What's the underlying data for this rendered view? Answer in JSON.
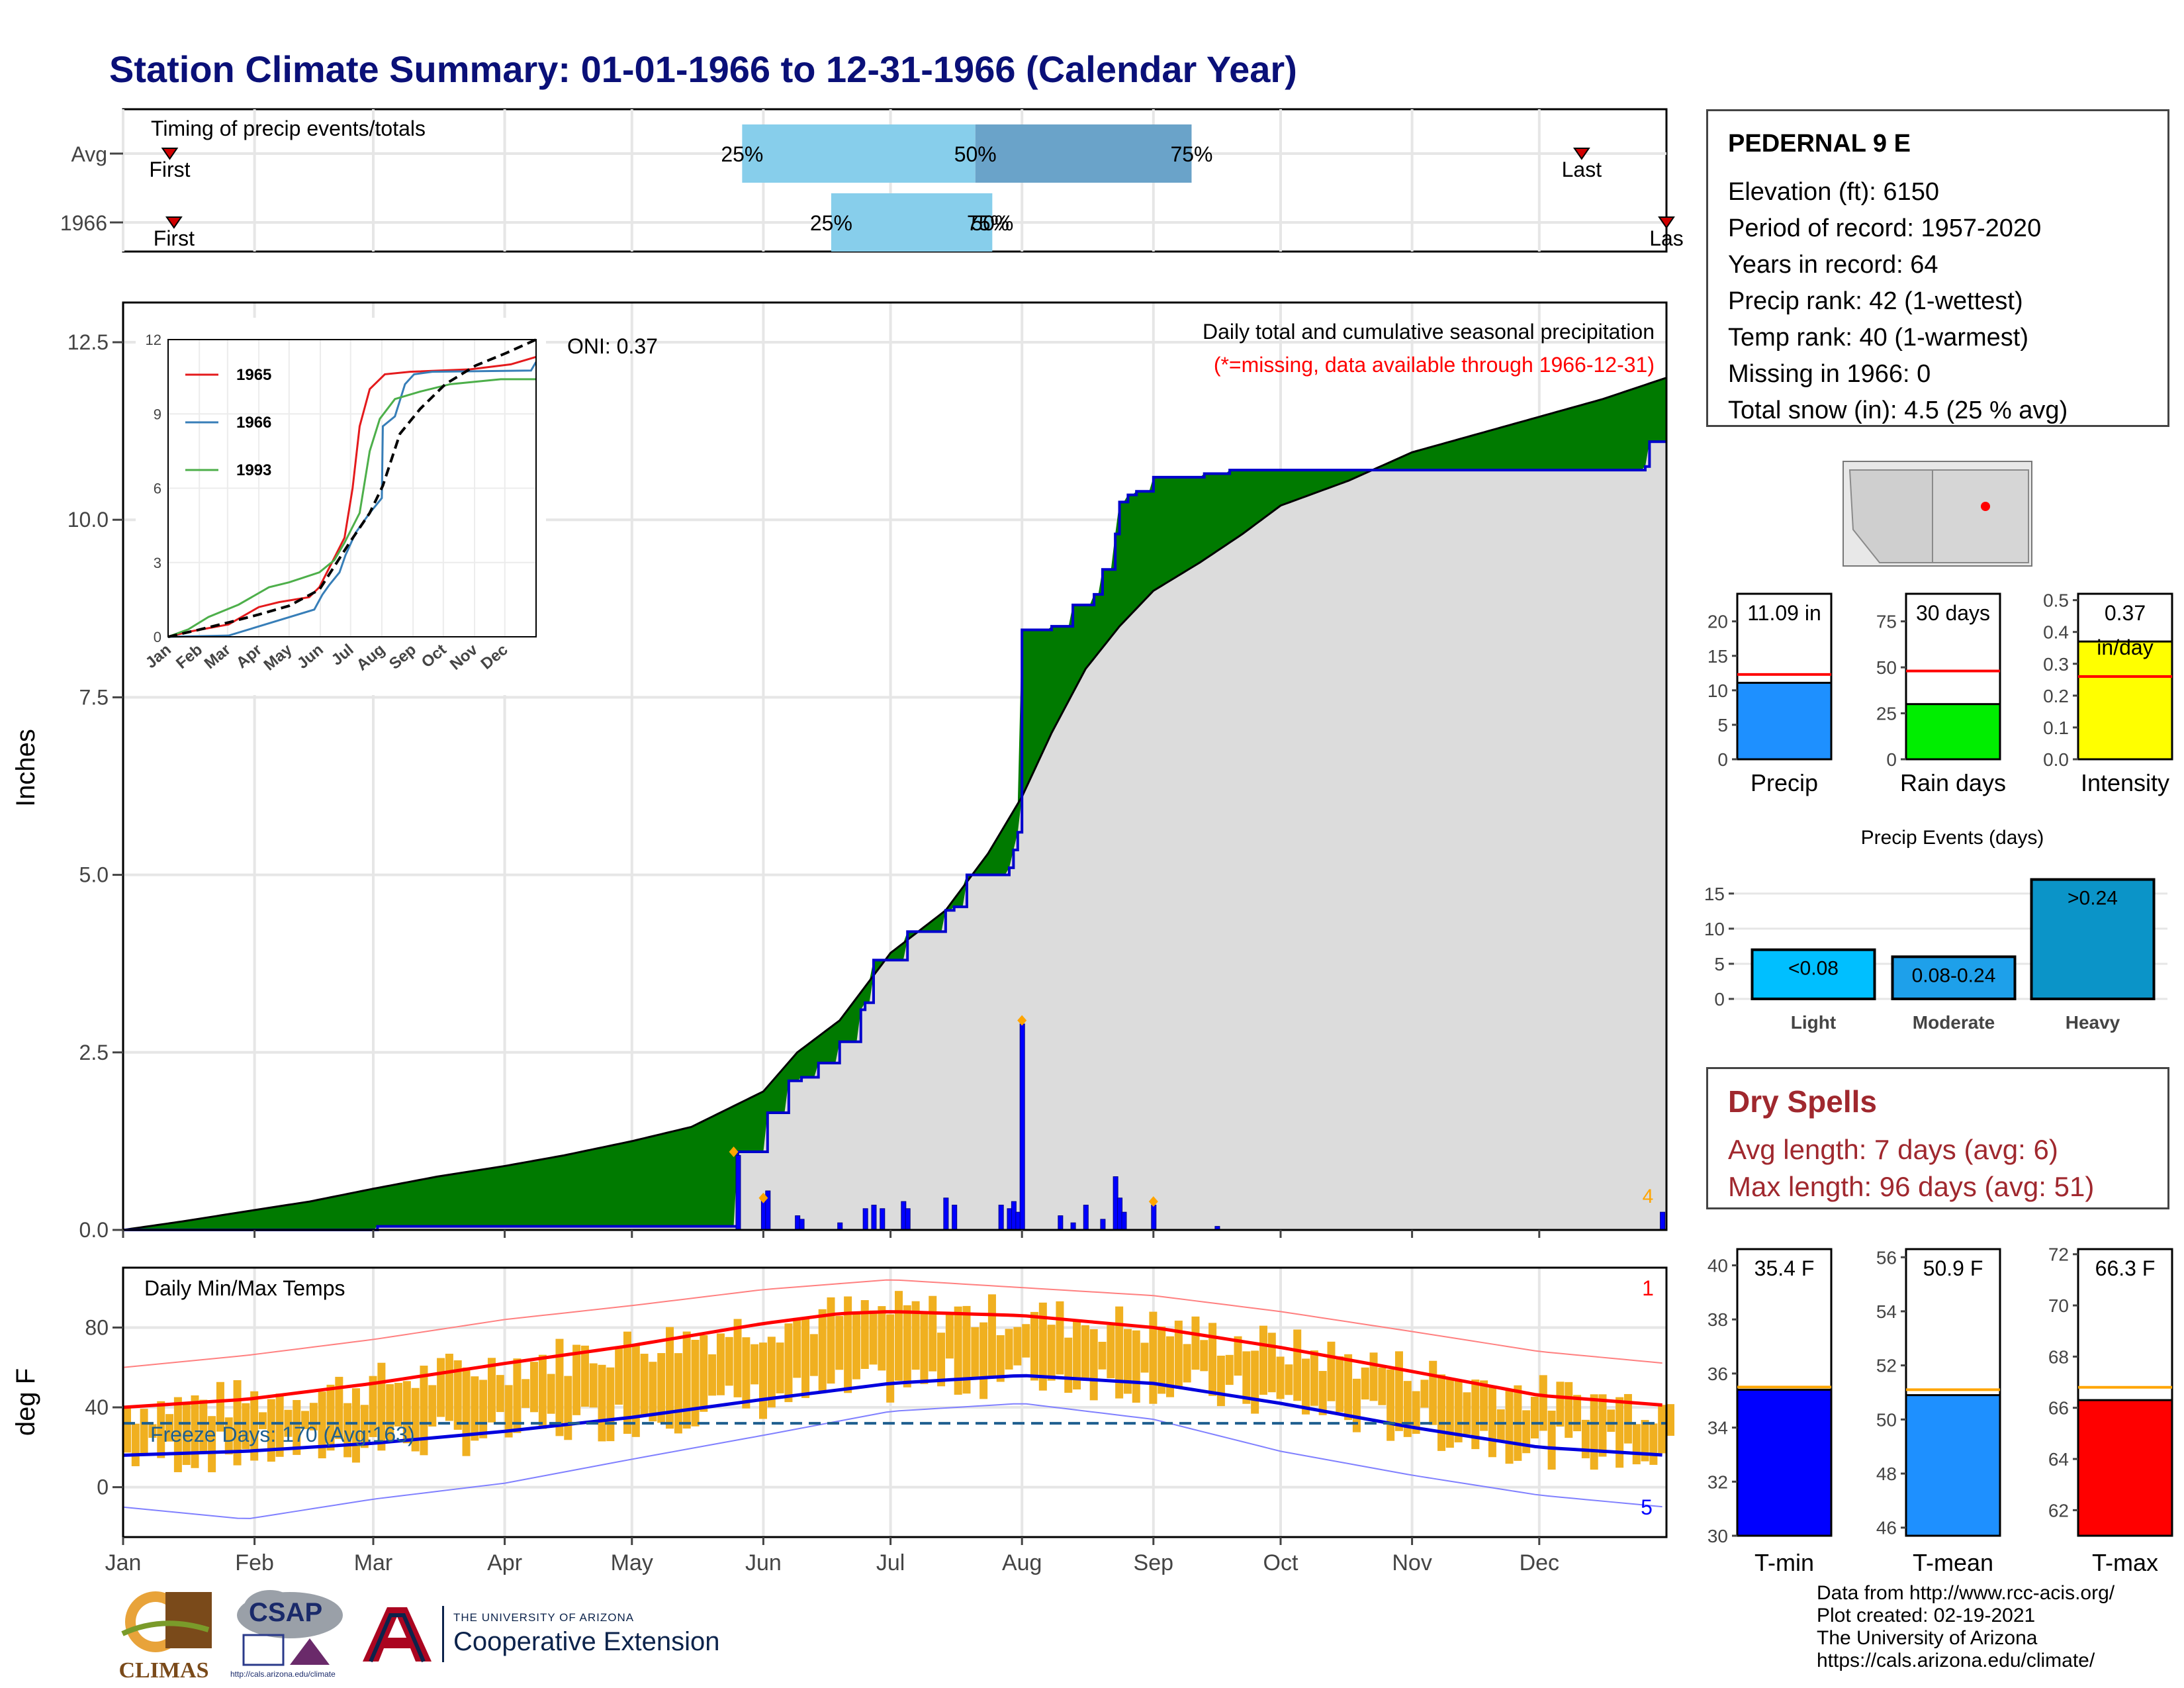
{
  "page": {
    "title": "Station Climate Summary: 01-01-1966 to 12-31-1966 (Calendar Year)"
  },
  "colors": {
    "title": "#0a1078",
    "cumulative_normal_fill": "#8b5a00",
    "cumulative_surplus_fill": "#007a00",
    "cumulative_observed_line": "#0000cc",
    "daily_precip_bar": "#0000ff",
    "timing_light": "#87ceeb",
    "timing_dark": "#6aa3c9",
    "temp_bar": "#f0b020",
    "tmax_normal": "#ff0000",
    "tmin_normal": "#0000dd",
    "dry_spells_text": "#a0282e"
  },
  "station": {
    "name": "PEDERNAL 9 E",
    "lines": [
      "Elevation (ft): 6150",
      "Period of record: 1957-2020",
      "Years in record: 64",
      "Precip rank: 42 (1-wettest)",
      "Temp rank: 40 (1-warmest)",
      "Missing in 1966: 0",
      "Total snow (in): 4.5 (25 % avg)"
    ]
  },
  "dry_spells": {
    "heading": "Dry Spells",
    "avg": "Avg length: 7 days (avg: 6)",
    "max": "Max length: 96 days (avg: 51)"
  },
  "source": {
    "lines": [
      "Data from http://www.rcc-acis.org/",
      "Plot created: 02-19-2021",
      "The University of Arizona",
      "https://cals.arizona.edu/climate/"
    ]
  },
  "logos": {
    "climas": "CLIMAS",
    "csap": "CSAP",
    "csap_url": "http://cals.arizona.edu/climate",
    "ua_line1": "THE UNIVERSITY OF ARIZONA",
    "ua_line2": "Cooperative Extension"
  },
  "chart_data": [
    {
      "type": "bar",
      "name": "timing",
      "title": "Timing of precip events/totals",
      "rows": [
        "Avg",
        "1966"
      ],
      "first_label": "First",
      "last_label": "Last",
      "last_label_1966": "Las",
      "avg": {
        "first_doy": 12,
        "p25_doy": 147,
        "p50_doy": 202,
        "p75_doy": 253,
        "last_doy": 345
      },
      "y1966": {
        "first_doy": 13,
        "p25_doy": 168,
        "p50_doy": 206,
        "p75_doy": 205,
        "last_doy": 365
      },
      "labels": {
        "p25": "25%",
        "p50": "50%",
        "p75": "75%",
        "overlap_1966": "50%"
      }
    },
    {
      "type": "area",
      "name": "precipitation",
      "ylabel": "Inches",
      "title_right": "Daily total and cumulative seasonal precipitation",
      "note": "(*=missing, data available through 1966-12-31)",
      "oni": "ONI: 0.37",
      "ylim": [
        0,
        12.5
      ],
      "yticks": [
        0.0,
        2.5,
        5.0,
        7.5,
        10.0,
        12.5
      ],
      "ytick_labels": [
        "0.0",
        "2.5",
        "5.0",
        "7.5",
        "10.0",
        "12.5"
      ],
      "xlim": [
        1,
        365
      ],
      "months": [
        "Jan",
        "Feb",
        "Mar",
        "Apr",
        "May",
        "Jun",
        "Jul",
        "Aug",
        "Sep",
        "Oct",
        "Nov",
        "Dec"
      ],
      "month_start_doy": [
        1,
        32,
        60,
        91,
        121,
        152,
        182,
        213,
        244,
        274,
        305,
        335
      ],
      "normal_cumulative": [
        [
          1,
          0.0
        ],
        [
          15,
          0.12
        ],
        [
          32,
          0.28
        ],
        [
          45,
          0.4
        ],
        [
          60,
          0.58
        ],
        [
          75,
          0.75
        ],
        [
          91,
          0.9
        ],
        [
          105,
          1.05
        ],
        [
          121,
          1.25
        ],
        [
          135,
          1.45
        ],
        [
          152,
          1.95
        ],
        [
          160,
          2.5
        ],
        [
          170,
          2.95
        ],
        [
          182,
          3.9
        ],
        [
          195,
          4.5
        ],
        [
          205,
          5.3
        ],
        [
          213,
          6.1
        ],
        [
          220,
          7.0
        ],
        [
          228,
          7.9
        ],
        [
          236,
          8.5
        ],
        [
          244,
          9.0
        ],
        [
          255,
          9.4
        ],
        [
          265,
          9.8
        ],
        [
          274,
          10.2
        ],
        [
          290,
          10.55
        ],
        [
          305,
          10.95
        ],
        [
          320,
          11.2
        ],
        [
          335,
          11.45
        ],
        [
          350,
          11.7
        ],
        [
          365,
          12.0
        ]
      ],
      "observed_cumulative": [
        [
          1,
          0.0
        ],
        [
          60,
          0.0
        ],
        [
          61,
          0.05
        ],
        [
          145,
          0.05
        ],
        [
          146,
          1.1
        ],
        [
          152,
          1.1
        ],
        [
          153,
          1.65
        ],
        [
          158,
          2.1
        ],
        [
          160,
          2.1
        ],
        [
          161,
          2.15
        ],
        [
          165,
          2.35
        ],
        [
          170,
          2.65
        ],
        [
          175,
          3.1
        ],
        [
          176,
          3.2
        ],
        [
          178,
          3.8
        ],
        [
          185,
          3.8
        ],
        [
          186,
          4.2
        ],
        [
          195,
          4.5
        ],
        [
          197,
          4.55
        ],
        [
          200,
          5.0
        ],
        [
          210,
          5.1
        ],
        [
          211,
          5.35
        ],
        [
          212,
          5.6
        ],
        [
          213,
          8.45
        ],
        [
          220,
          8.5
        ],
        [
          225,
          8.8
        ],
        [
          230,
          8.95
        ],
        [
          232,
          9.3
        ],
        [
          235,
          9.8
        ],
        [
          236,
          10.25
        ],
        [
          238,
          10.35
        ],
        [
          240,
          10.4
        ],
        [
          244,
          10.6
        ],
        [
          256,
          10.65
        ],
        [
          262,
          10.7
        ],
        [
          300,
          10.7
        ],
        [
          360,
          10.75
        ],
        [
          361,
          11.1
        ],
        [
          365,
          11.1
        ]
      ],
      "daily_precip": [
        [
          146,
          1.05
        ],
        [
          152,
          0.45
        ],
        [
          153,
          0.55
        ],
        [
          160,
          0.2
        ],
        [
          161,
          0.15
        ],
        [
          170,
          0.1
        ],
        [
          176,
          0.3
        ],
        [
          178,
          0.35
        ],
        [
          180,
          0.3
        ],
        [
          185,
          0.4
        ],
        [
          186,
          0.3
        ],
        [
          195,
          0.45
        ],
        [
          197,
          0.35
        ],
        [
          208,
          0.35
        ],
        [
          210,
          0.3
        ],
        [
          211,
          0.4
        ],
        [
          212,
          0.25
        ],
        [
          213,
          2.9
        ],
        [
          222,
          0.2
        ],
        [
          225,
          0.1
        ],
        [
          228,
          0.35
        ],
        [
          232,
          0.15
        ],
        [
          235,
          0.75
        ],
        [
          236,
          0.45
        ],
        [
          237,
          0.25
        ],
        [
          244,
          0.35
        ],
        [
          259,
          0.05
        ],
        [
          364,
          0.25
        ]
      ],
      "markers": [
        [
          145,
          1.1
        ],
        [
          152,
          0.45
        ],
        [
          213,
          2.95
        ],
        [
          244,
          0.4
        ]
      ],
      "annotation_count": "4"
    },
    {
      "type": "line",
      "name": "inset_cumulative",
      "ylim": [
        0,
        12
      ],
      "yticks": [
        0,
        3,
        6,
        9,
        12
      ],
      "months": [
        "Jan",
        "Feb",
        "Mar",
        "Apr",
        "May",
        "Jun",
        "Jul",
        "Aug",
        "Sep",
        "Oct",
        "Nov",
        "Dec"
      ],
      "series": [
        {
          "name": "1965",
          "color": "#e41a1c",
          "points": [
            [
              0,
              0
            ],
            [
              20,
              0.2
            ],
            [
              60,
              0.5
            ],
            [
              90,
              1.2
            ],
            [
              110,
              1.4
            ],
            [
              140,
              1.6
            ],
            [
              150,
              2.0
            ],
            [
              165,
              3.2
            ],
            [
              175,
              4.0
            ],
            [
              183,
              6.0
            ],
            [
              190,
              8.5
            ],
            [
              200,
              10.0
            ],
            [
              215,
              10.6
            ],
            [
              240,
              10.7
            ],
            [
              300,
              10.8
            ],
            [
              340,
              11.0
            ],
            [
              365,
              11.3
            ]
          ]
        },
        {
          "name": "1966",
          "color": "#377eb8",
          "points": [
            [
              0,
              0
            ],
            [
              60,
              0.05
            ],
            [
              145,
              1.1
            ],
            [
              153,
              1.7
            ],
            [
              160,
              2.1
            ],
            [
              170,
              2.6
            ],
            [
              176,
              3.3
            ],
            [
              186,
              4.2
            ],
            [
              200,
              5.0
            ],
            [
              212,
              5.6
            ],
            [
              213,
              8.5
            ],
            [
              225,
              8.9
            ],
            [
              235,
              10.2
            ],
            [
              244,
              10.6
            ],
            [
              262,
              10.7
            ],
            [
              360,
              10.75
            ],
            [
              365,
              11.1
            ]
          ]
        },
        {
          "name": "1993",
          "color": "#4daf4a",
          "points": [
            [
              0,
              0
            ],
            [
              20,
              0.3
            ],
            [
              40,
              0.8
            ],
            [
              70,
              1.3
            ],
            [
              100,
              2.0
            ],
            [
              120,
              2.2
            ],
            [
              150,
              2.6
            ],
            [
              165,
              3.1
            ],
            [
              175,
              3.8
            ],
            [
              190,
              5.0
            ],
            [
              200,
              7.5
            ],
            [
              210,
              8.8
            ],
            [
              225,
              9.6
            ],
            [
              250,
              9.9
            ],
            [
              280,
              10.2
            ],
            [
              330,
              10.4
            ],
            [
              365,
              10.4
            ]
          ]
        },
        {
          "name": "Avg",
          "color": "#000000",
          "points": [
            [
              0,
              0
            ],
            [
              30,
              0.28
            ],
            [
              60,
              0.58
            ],
            [
              90,
              0.9
            ],
            [
              120,
              1.25
            ],
            [
              150,
              1.9
            ],
            [
              180,
              3.8
            ],
            [
              200,
              5.0
            ],
            [
              213,
              6.1
            ],
            [
              230,
              8.2
            ],
            [
              250,
              9.2
            ],
            [
              275,
              10.2
            ],
            [
              305,
              10.95
            ],
            [
              335,
              11.45
            ],
            [
              365,
              12.0
            ]
          ]
        }
      ]
    },
    {
      "type": "bar",
      "name": "precip_summary",
      "panels": [
        {
          "label": "Precip",
          "value_text": "11.09 in",
          "value": 11.09,
          "normal": 12.3,
          "ylim": [
            0,
            24
          ],
          "yticks": [
            0,
            5,
            10,
            15,
            20
          ],
          "color": "#1e90ff"
        },
        {
          "label": "Rain days",
          "value_text": "30 days",
          "value": 30,
          "normal": 48,
          "ylim": [
            0,
            90
          ],
          "yticks": [
            0,
            25,
            50,
            75
          ],
          "color": "#00ee00"
        },
        {
          "label": "Intensity",
          "value_text": "0.37",
          "value_text2": "in/day",
          "value": 0.37,
          "normal": 0.26,
          "ylim": [
            0,
            0.52
          ],
          "yticks": [
            0.0,
            0.1,
            0.2,
            0.3,
            0.4,
            0.5
          ],
          "color": "#ffff00"
        }
      ]
    },
    {
      "type": "bar",
      "name": "precip_events",
      "title": "Precip Events (days)",
      "categories": [
        "Light",
        "Moderate",
        "Heavy"
      ],
      "bar_labels": [
        "<0.08",
        "0.08-0.24",
        ">0.24"
      ],
      "values": [
        7,
        6,
        17
      ],
      "ylim": [
        0,
        18
      ],
      "yticks": [
        0,
        5,
        10,
        15
      ]
    },
    {
      "type": "bar",
      "name": "daily_temps",
      "title": "Daily Min/Max Temps",
      "ylabel": "deg F",
      "ylim": [
        -25,
        110
      ],
      "yticks": [
        0,
        40,
        80
      ],
      "freeze_line": 32,
      "freeze_text": "Freeze Days: 170 (Avg:163)",
      "record_high_count": "1",
      "record_low_count": "5",
      "normal_max": [
        [
          1,
          40
        ],
        [
          30,
          44
        ],
        [
          60,
          52
        ],
        [
          91,
          62
        ],
        [
          121,
          71
        ],
        [
          152,
          82
        ],
        [
          170,
          87
        ],
        [
          182,
          88
        ],
        [
          213,
          86
        ],
        [
          244,
          80
        ],
        [
          274,
          70
        ],
        [
          305,
          58
        ],
        [
          335,
          46
        ],
        [
          365,
          41
        ]
      ],
      "normal_min": [
        [
          1,
          16
        ],
        [
          30,
          18
        ],
        [
          60,
          22
        ],
        [
          91,
          28
        ],
        [
          121,
          35
        ],
        [
          152,
          44
        ],
        [
          182,
          52
        ],
        [
          213,
          56
        ],
        [
          244,
          52
        ],
        [
          274,
          42
        ],
        [
          305,
          30
        ],
        [
          335,
          20
        ],
        [
          365,
          16
        ]
      ],
      "record_max": [
        [
          1,
          60
        ],
        [
          30,
          66
        ],
        [
          60,
          74
        ],
        [
          91,
          84
        ],
        [
          121,
          91
        ],
        [
          152,
          99
        ],
        [
          182,
          104
        ],
        [
          213,
          100
        ],
        [
          244,
          96
        ],
        [
          274,
          88
        ],
        [
          305,
          78
        ],
        [
          335,
          68
        ],
        [
          365,
          62
        ]
      ],
      "record_min": [
        [
          1,
          -10
        ],
        [
          30,
          -16
        ],
        [
          60,
          -6
        ],
        [
          91,
          2
        ],
        [
          121,
          14
        ],
        [
          152,
          26
        ],
        [
          182,
          38
        ],
        [
          213,
          42
        ],
        [
          244,
          34
        ],
        [
          274,
          18
        ],
        [
          305,
          6
        ],
        [
          335,
          -4
        ],
        [
          365,
          -10
        ]
      ]
    },
    {
      "type": "bar",
      "name": "temp_summary",
      "panels": [
        {
          "label": "T-min",
          "value_text": "35.4 F",
          "value": 35.4,
          "normal": 35.5,
          "ylim": [
            30,
            40.6
          ],
          "yticks": [
            30,
            32,
            34,
            36,
            38,
            40
          ],
          "color": "#0000ff"
        },
        {
          "label": "T-mean",
          "value_text": "50.9 F",
          "value": 50.9,
          "normal": 51.1,
          "ylim": [
            45.7,
            56.3
          ],
          "yticks": [
            46,
            48,
            50,
            52,
            54,
            56
          ],
          "color": "#1e90ff"
        },
        {
          "label": "T-max",
          "value_text": "66.3 F",
          "value": 66.3,
          "normal": 66.8,
          "ylim": [
            61,
            72.2
          ],
          "yticks": [
            62,
            64,
            66,
            68,
            70,
            72
          ],
          "color": "#ff0000"
        }
      ]
    }
  ]
}
